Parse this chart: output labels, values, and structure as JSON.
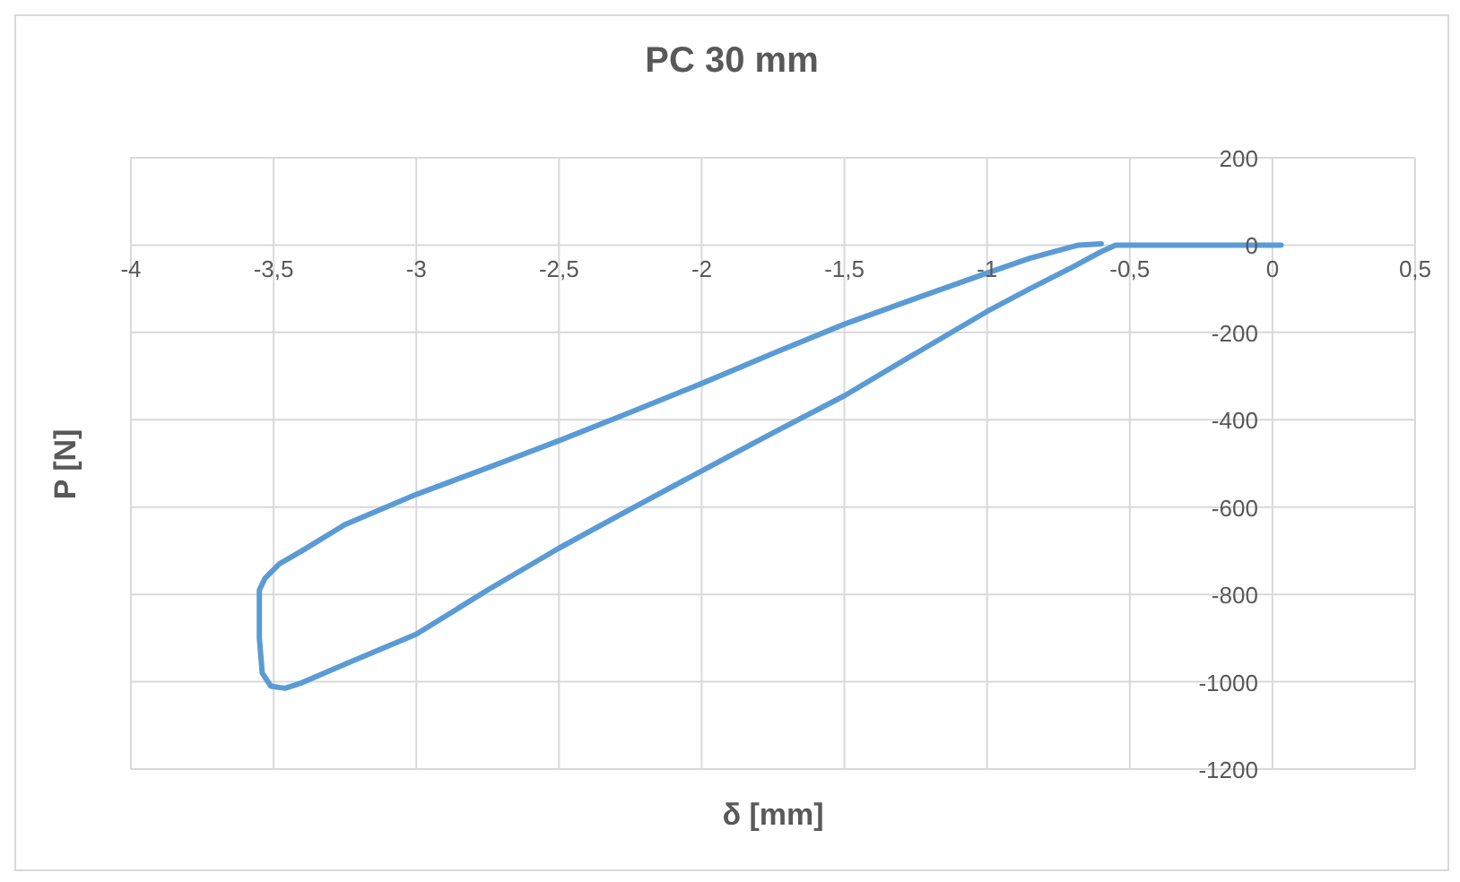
{
  "chart_data": {
    "type": "line",
    "title": "PC 30 mm",
    "xlabel": "δ [mm]",
    "ylabel": "P [N]",
    "x": [
      0.03,
      -0.2,
      -0.4,
      -0.55,
      -0.6,
      -0.7,
      -0.85,
      -1,
      -1.25,
      -1.5,
      -1.75,
      -2,
      -2.25,
      -2.5,
      -2.75,
      -3,
      -3.25,
      -3.4,
      -3.46,
      -3.51,
      -3.54,
      -3.55,
      -3.55,
      -3.53,
      -3.48,
      -3.4,
      -3.25,
      -3,
      -2.75,
      -2.5,
      -2.25,
      -2,
      -1.75,
      -1.5,
      -1.25,
      -1,
      -0.85,
      -0.68,
      -0.6
    ],
    "series": [
      {
        "color": "#5b9bd5",
        "values": [
          0,
          0,
          0,
          0,
          -15,
          -50,
          -100,
          -152,
          -248,
          -345,
          -430,
          -517,
          -605,
          -694,
          -790,
          -891,
          -960,
          -1002,
          -1015,
          -1010,
          -980,
          -900,
          -790,
          -763,
          -730,
          -700,
          -640,
          -571,
          -510,
          -448,
          -383,
          -317,
          -248,
          -181,
          -122,
          -64,
          -30,
          0,
          3
        ]
      }
    ],
    "xlim": [
      -4,
      0.5
    ],
    "xticks": [
      -4,
      {
        "value": -3.5,
        "label": "-3,5"
      },
      -3,
      {
        "value": -2.5,
        "label": "-2,5"
      },
      -2,
      {
        "value": -1.5,
        "label": "-1,5"
      },
      -1,
      {
        "value": -0.5,
        "label": "-0,5"
      },
      0,
      {
        "value": 0.5,
        "label": "0,5"
      }
    ],
    "ylim": [
      -1200,
      200
    ],
    "yticks": [
      -1200,
      -1000,
      -800,
      -600,
      -400,
      -200,
      0,
      200
    ],
    "grid": true,
    "marker": "none",
    "line_style": "solid",
    "legend": false
  }
}
